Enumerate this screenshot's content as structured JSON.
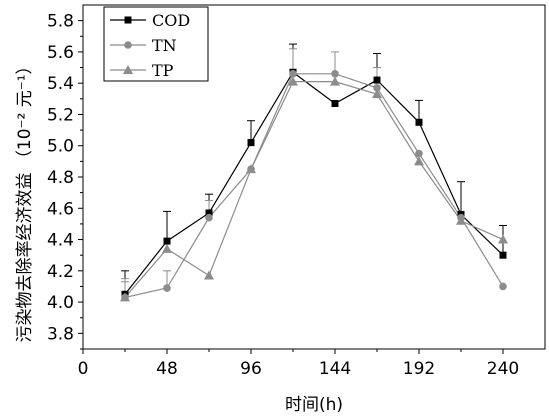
{
  "chart_data": {
    "type": "line",
    "xlabel": "时间(h)",
    "ylabel": "污染物去除率经济效益 （10⁻² 元⁻¹）",
    "x_ticks": [
      "0",
      "48",
      "96",
      "144",
      "192",
      "240"
    ],
    "y_ticks": [
      "3.8",
      "4.0",
      "4.2",
      "4.4",
      "4.6",
      "4.8",
      "5.0",
      "5.2",
      "5.4",
      "5.6",
      "5.8"
    ],
    "xlim": [
      0,
      264
    ],
    "ylim": [
      3.7,
      5.9
    ],
    "legend_position": "top-left",
    "x": [
      24,
      48,
      72,
      96,
      120,
      144,
      168,
      192,
      216,
      240
    ],
    "series": [
      {
        "name": "COD",
        "marker": "square",
        "color": "#000000",
        "values": [
          4.05,
          4.39,
          4.57,
          5.02,
          5.47,
          5.27,
          5.42,
          5.15,
          4.56,
          4.3
        ],
        "error_upper": [
          4.2,
          4.58,
          4.69,
          5.16,
          5.65,
          5.27,
          5.59,
          5.29,
          4.77,
          4.49
        ]
      },
      {
        "name": "TN",
        "marker": "circle",
        "color": "#8c8c8c",
        "values": [
          4.03,
          4.09,
          4.54,
          4.85,
          5.46,
          5.46,
          5.37,
          4.95,
          4.54,
          4.1
        ],
        "error_upper": [
          4.13,
          4.2,
          4.65,
          4.85,
          5.62,
          5.6,
          5.5,
          4.95,
          4.54,
          4.1
        ]
      },
      {
        "name": "TP",
        "marker": "triangle",
        "color": "#8c8c8c",
        "values": [
          4.03,
          4.34,
          4.17,
          4.85,
          5.41,
          5.41,
          5.33,
          4.9,
          4.52,
          4.4
        ],
        "error_upper": [
          4.15,
          4.34,
          4.17,
          4.85,
          5.41,
          5.41,
          5.33,
          4.9,
          4.52,
          4.4
        ]
      }
    ]
  }
}
